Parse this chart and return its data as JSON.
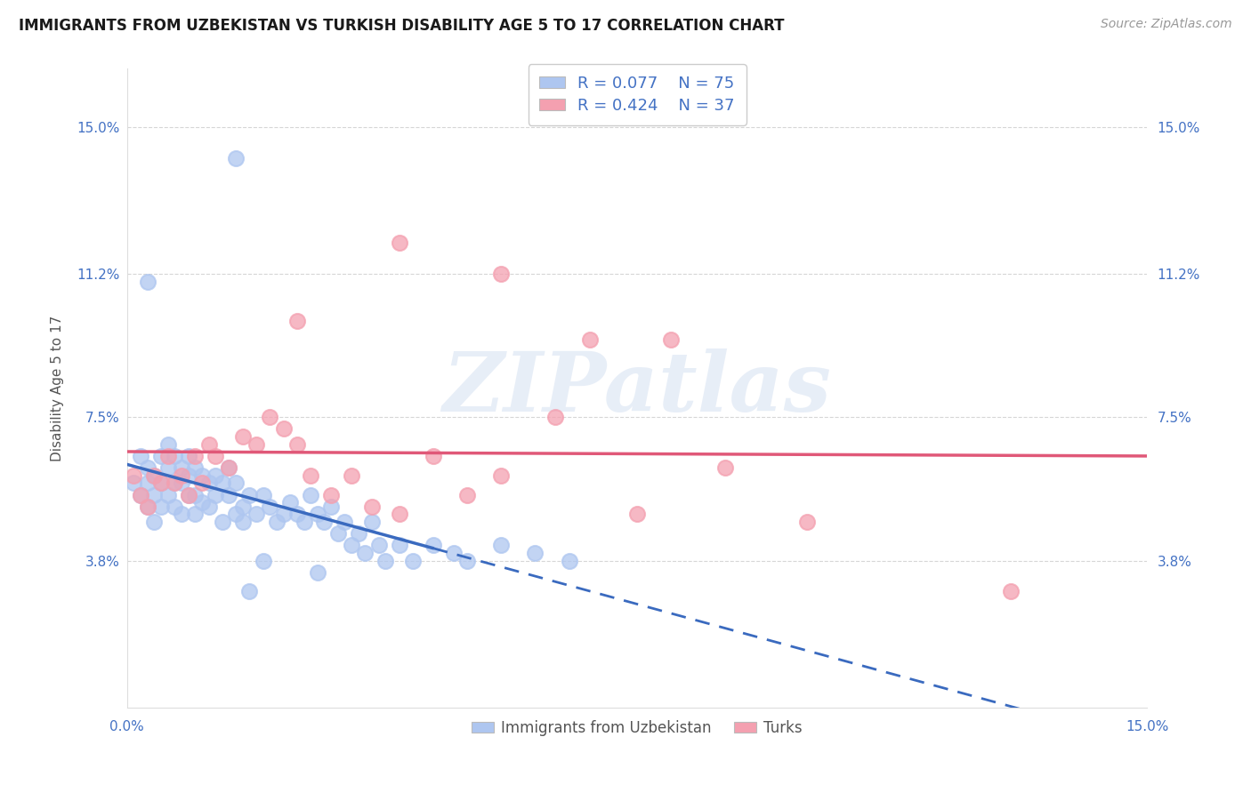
{
  "title": "IMMIGRANTS FROM UZBEKISTAN VS TURKISH DISABILITY AGE 5 TO 17 CORRELATION CHART",
  "source": "Source: ZipAtlas.com",
  "ylabel": "Disability Age 5 to 17",
  "y_tick_labels": [
    "3.8%",
    "7.5%",
    "11.2%",
    "15.0%"
  ],
  "y_tick_values": [
    0.038,
    0.075,
    0.112,
    0.15
  ],
  "xlim": [
    0.0,
    0.15
  ],
  "ylim": [
    0.0,
    0.165
  ],
  "legend_line1": "R = 0.077    N = 75",
  "legend_line2": "R = 0.424    N = 37",
  "watermark": "ZIPatlas",
  "title_color": "#1a1a1a",
  "tick_label_color": "#4472c4",
  "grid_color": "#cccccc",
  "background_color": "#ffffff",
  "uzbek_color": "#aec6f0",
  "turk_color": "#f4a0b0",
  "uzbek_line_color": "#3a6abf",
  "turk_line_color": "#e05878",
  "legend_color": "#4472c4",
  "title_fontsize": 12,
  "axis_fontsize": 11,
  "tick_fontsize": 11,
  "source_fontsize": 10,
  "uz_x": [
    0.001,
    0.002,
    0.002,
    0.003,
    0.003,
    0.003,
    0.004,
    0.004,
    0.004,
    0.005,
    0.005,
    0.005,
    0.006,
    0.006,
    0.006,
    0.007,
    0.007,
    0.007,
    0.008,
    0.008,
    0.008,
    0.009,
    0.009,
    0.009,
    0.01,
    0.01,
    0.01,
    0.011,
    0.011,
    0.012,
    0.012,
    0.013,
    0.013,
    0.014,
    0.014,
    0.015,
    0.015,
    0.016,
    0.016,
    0.017,
    0.017,
    0.018,
    0.019,
    0.02,
    0.021,
    0.022,
    0.023,
    0.024,
    0.025,
    0.026,
    0.027,
    0.028,
    0.029,
    0.03,
    0.031,
    0.032,
    0.033,
    0.034,
    0.035,
    0.036,
    0.037,
    0.038,
    0.04,
    0.042,
    0.045,
    0.048,
    0.05,
    0.055,
    0.06,
    0.065,
    0.003,
    0.016,
    0.02,
    0.028,
    0.018
  ],
  "uz_y": [
    0.058,
    0.065,
    0.055,
    0.062,
    0.058,
    0.052,
    0.06,
    0.055,
    0.048,
    0.065,
    0.058,
    0.052,
    0.068,
    0.062,
    0.055,
    0.065,
    0.058,
    0.052,
    0.062,
    0.058,
    0.05,
    0.065,
    0.06,
    0.055,
    0.062,
    0.055,
    0.05,
    0.06,
    0.053,
    0.058,
    0.052,
    0.06,
    0.055,
    0.048,
    0.058,
    0.062,
    0.055,
    0.05,
    0.058,
    0.052,
    0.048,
    0.055,
    0.05,
    0.055,
    0.052,
    0.048,
    0.05,
    0.053,
    0.05,
    0.048,
    0.055,
    0.05,
    0.048,
    0.052,
    0.045,
    0.048,
    0.042,
    0.045,
    0.04,
    0.048,
    0.042,
    0.038,
    0.042,
    0.038,
    0.042,
    0.04,
    0.038,
    0.042,
    0.04,
    0.038,
    0.11,
    0.142,
    0.038,
    0.035,
    0.03
  ],
  "turk_x": [
    0.001,
    0.002,
    0.003,
    0.004,
    0.005,
    0.006,
    0.007,
    0.008,
    0.009,
    0.01,
    0.011,
    0.012,
    0.013,
    0.015,
    0.017,
    0.019,
    0.021,
    0.023,
    0.025,
    0.027,
    0.03,
    0.033,
    0.036,
    0.04,
    0.045,
    0.05,
    0.055,
    0.063,
    0.075,
    0.088,
    0.025,
    0.04,
    0.055,
    0.068,
    0.08,
    0.1,
    0.13
  ],
  "turk_y": [
    0.06,
    0.055,
    0.052,
    0.06,
    0.058,
    0.065,
    0.058,
    0.06,
    0.055,
    0.065,
    0.058,
    0.068,
    0.065,
    0.062,
    0.07,
    0.068,
    0.075,
    0.072,
    0.068,
    0.06,
    0.055,
    0.06,
    0.052,
    0.05,
    0.065,
    0.055,
    0.06,
    0.075,
    0.05,
    0.062,
    0.1,
    0.12,
    0.112,
    0.095,
    0.095,
    0.048,
    0.03
  ]
}
